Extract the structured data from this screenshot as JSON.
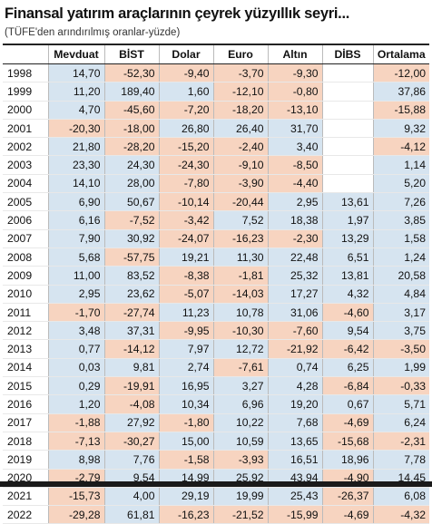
{
  "title": "Finansal yatırım araçlarının çeyrek yüzyıllık seyri...",
  "subtitle": "(TÜFE'den arındırılmış oranlar-yüzde)",
  "chart_data": {
    "type": "table",
    "columns": [
      "",
      "Mevduat",
      "BİST",
      "Dolar",
      "Euro",
      "Altın",
      "DİBS",
      "Ortalama"
    ],
    "rows": [
      [
        "1998",
        "14,70",
        "-52,30",
        "-9,40",
        "-3,70",
        "-9,30",
        "",
        "-12,00"
      ],
      [
        "1999",
        "11,20",
        "189,40",
        "1,60",
        "-12,10",
        "-0,80",
        "",
        "37,86"
      ],
      [
        "2000",
        "4,70",
        "-45,60",
        "-7,20",
        "-18,20",
        "-13,10",
        "",
        "-15,88"
      ],
      [
        "2001",
        "-20,30",
        "-18,00",
        "26,80",
        "26,40",
        "31,70",
        "",
        "9,32"
      ],
      [
        "2002",
        "21,80",
        "-28,20",
        "-15,20",
        "-2,40",
        "3,40",
        "",
        "-4,12"
      ],
      [
        "2003",
        "23,30",
        "24,30",
        "-24,30",
        "-9,10",
        "-8,50",
        "",
        "1,14"
      ],
      [
        "2004",
        "14,10",
        "28,00",
        "-7,80",
        "-3,90",
        "-4,40",
        "",
        "5,20"
      ],
      [
        "2005",
        "6,90",
        "50,67",
        "-10,14",
        "-20,44",
        "2,95",
        "13,61",
        "7,26"
      ],
      [
        "2006",
        "6,16",
        "-7,52",
        "-3,42",
        "7,52",
        "18,38",
        "1,97",
        "3,85"
      ],
      [
        "2007",
        "7,90",
        "30,92",
        "-24,07",
        "-16,23",
        "-2,30",
        "13,29",
        "1,58"
      ],
      [
        "2008",
        "5,68",
        "-57,75",
        "19,21",
        "11,30",
        "22,48",
        "6,51",
        "1,24"
      ],
      [
        "2009",
        "11,00",
        "83,52",
        "-8,38",
        "-1,81",
        "25,32",
        "13,81",
        "20,58"
      ],
      [
        "2010",
        "2,95",
        "23,62",
        "-5,07",
        "-14,03",
        "17,27",
        "4,32",
        "4,84"
      ],
      [
        "2011",
        "-1,70",
        "-27,74",
        "11,23",
        "10,78",
        "31,06",
        "-4,60",
        "3,17"
      ],
      [
        "2012",
        "3,48",
        "37,31",
        "-9,95",
        "-10,30",
        "-7,60",
        "9,54",
        "3,75"
      ],
      [
        "2013",
        "0,77",
        "-14,12",
        "7,97",
        "12,72",
        "-21,92",
        "-6,42",
        "-3,50"
      ],
      [
        "2014",
        "0,03",
        "9,81",
        "2,74",
        "-7,61",
        "0,74",
        "6,25",
        "1,99"
      ],
      [
        "2015",
        "0,29",
        "-19,91",
        "16,95",
        "3,27",
        "4,28",
        "-6,84",
        "-0,33"
      ],
      [
        "2016",
        "1,20",
        "-4,08",
        "10,34",
        "6,96",
        "19,20",
        "0,67",
        "5,71"
      ],
      [
        "2017",
        "-1,88",
        "27,92",
        "-1,80",
        "10,22",
        "7,68",
        "-4,69",
        "6,24"
      ],
      [
        "2018",
        "-7,13",
        "-30,27",
        "15,00",
        "10,59",
        "13,65",
        "-15,68",
        "-2,31"
      ],
      [
        "2019",
        "8,98",
        "7,76",
        "-1,58",
        "-3,93",
        "16,51",
        "18,96",
        "7,78"
      ],
      [
        "2020",
        "-2,79",
        "9,54",
        "14,99",
        "25,92",
        "43,94",
        "-4,90",
        "14,45"
      ],
      [
        "2021",
        "-15,73",
        "4,00",
        "29,19",
        "19,99",
        "25,43",
        "-26,37",
        "6,08"
      ],
      [
        "2022",
        "-29,28",
        "61,81",
        "-16,23",
        "-21,52",
        "-15,99",
        "-4,69",
        "-4,32"
      ]
    ],
    "colors": {
      "positive": "#d6e4f0",
      "negative": "#f7d4c0"
    }
  }
}
